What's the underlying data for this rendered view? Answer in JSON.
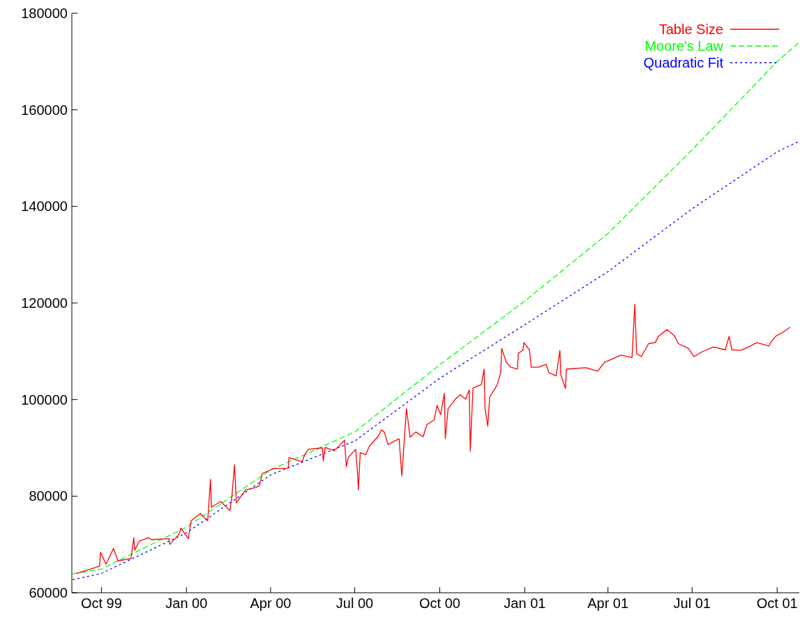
{
  "chart_data": {
    "type": "line",
    "xlim": [
      "1999-08-30",
      "2001-10-25"
    ],
    "ylim": [
      60000,
      180000
    ],
    "xticks": [
      {
        "value": "1999-10-01",
        "label": "Oct 99"
      },
      {
        "value": "2000-01-01",
        "label": "Jan 00"
      },
      {
        "value": "2000-04-01",
        "label": "Apr 00"
      },
      {
        "value": "2000-07-01",
        "label": "Jul 00"
      },
      {
        "value": "2000-10-01",
        "label": "Oct 00"
      },
      {
        "value": "2001-01-01",
        "label": "Jan 01"
      },
      {
        "value": "2001-04-01",
        "label": "Apr 01"
      },
      {
        "value": "2001-07-01",
        "label": "Jul 01"
      },
      {
        "value": "2001-10-01",
        "label": "Oct 01"
      }
    ],
    "yticks": [
      60000,
      80000,
      100000,
      120000,
      140000,
      160000,
      180000
    ],
    "grid": false,
    "legend": "top right",
    "marker": "none",
    "series": [
      {
        "name": "Table Size",
        "color": "#ff0000",
        "line_style": "solid",
        "x": [
          "1999-09-04",
          "1999-09-29",
          "1999-09-30",
          "1999-10-06",
          "1999-10-14",
          "1999-10-19",
          "1999-11-02",
          "1999-11-05",
          "1999-11-06",
          "1999-11-11",
          "1999-11-21",
          "1999-11-24",
          "1999-12-13",
          "1999-12-14",
          "1999-12-24",
          "1999-12-26",
          "2000-01-03",
          "2000-01-06",
          "2000-01-16",
          "2000-01-24",
          "2000-01-27",
          "2000-01-28",
          "2000-02-07",
          "2000-02-17",
          "2000-02-19",
          "2000-02-22",
          "2000-02-24",
          "2000-03-05",
          "2000-03-16",
          "2000-03-20",
          "2000-03-23",
          "2000-04-04",
          "2000-04-20",
          "2000-04-21",
          "2000-05-05",
          "2000-05-08",
          "2000-05-12",
          "2000-05-27",
          "2000-05-28",
          "2000-05-30",
          "2000-06-09",
          "2000-06-20",
          "2000-06-22",
          "2000-06-24",
          "2000-07-02",
          "2000-07-04",
          "2000-07-05",
          "2000-07-07",
          "2000-07-13",
          "2000-07-17",
          "2000-07-26",
          "2000-07-30",
          "2000-08-02",
          "2000-08-06",
          "2000-08-18",
          "2000-08-21",
          "2000-08-26",
          "2000-08-30",
          "2000-09-05",
          "2000-09-13",
          "2000-09-17",
          "2000-09-25",
          "2000-09-28",
          "2000-10-02",
          "2000-10-06",
          "2000-10-07",
          "2000-10-10",
          "2000-10-18",
          "2000-10-23",
          "2000-10-29",
          "2000-11-02",
          "2000-11-03",
          "2000-11-06",
          "2000-11-15",
          "2000-11-18",
          "2000-11-19",
          "2000-11-22",
          "2000-11-24",
          "2000-12-02",
          "2000-12-06",
          "2000-12-07",
          "2000-12-12",
          "2000-12-17",
          "2000-12-24",
          "2000-12-25",
          "2000-12-30",
          "2000-12-31",
          "2001-01-06",
          "2001-01-08",
          "2001-01-16",
          "2001-01-24",
          "2001-01-27",
          "2001-02-04",
          "2001-02-08",
          "2001-02-09",
          "2001-02-14",
          "2001-02-15",
          "2001-03-08",
          "2001-03-21",
          "2001-03-28",
          "2001-04-15",
          "2001-04-27",
          "2001-04-30",
          "2001-05-02",
          "2001-05-07",
          "2001-05-15",
          "2001-05-22",
          "2001-05-26",
          "2001-06-04",
          "2001-06-12",
          "2001-06-16",
          "2001-06-27",
          "2001-07-03",
          "2001-07-12",
          "2001-07-24",
          "2001-08-06",
          "2001-08-10",
          "2001-08-13",
          "2001-08-23",
          "2001-08-31",
          "2001-09-09",
          "2001-09-22",
          "2001-09-25",
          "2001-09-30",
          "2001-10-07",
          "2001-10-15"
        ],
        "values": [
          64000,
          65500,
          68400,
          65900,
          69200,
          66600,
          67100,
          71400,
          68800,
          70700,
          71400,
          71000,
          71200,
          70000,
          72100,
          73400,
          71200,
          74900,
          76400,
          74900,
          83500,
          77700,
          78900,
          77000,
          79600,
          86500,
          78600,
          81300,
          81800,
          82200,
          84700,
          85700,
          85800,
          88000,
          87100,
          88600,
          89700,
          90000,
          87300,
          90100,
          89400,
          91600,
          86100,
          88000,
          89700,
          85000,
          81300,
          89000,
          88600,
          90400,
          92300,
          93700,
          93300,
          90700,
          91900,
          84200,
          98100,
          92200,
          93300,
          92300,
          94800,
          95800,
          98800,
          96900,
          101300,
          91900,
          98100,
          100100,
          101000,
          100100,
          102000,
          89300,
          102400,
          103100,
          106300,
          98100,
          94500,
          100500,
          103000,
          105600,
          110600,
          107700,
          106700,
          106300,
          109600,
          110200,
          111800,
          110300,
          106700,
          106700,
          107300,
          105600,
          104900,
          110200,
          105100,
          102300,
          106300,
          106600,
          105900,
          107700,
          109200,
          108700,
          119700,
          109500,
          108900,
          111600,
          111800,
          113200,
          114500,
          113200,
          111600,
          110600,
          108900,
          109900,
          110900,
          110300,
          113100,
          110300,
          110200,
          110900,
          111800,
          111100,
          112100,
          113200,
          113900,
          115000
        ]
      },
      {
        "name": "Moore's Law",
        "color": "#00ff00",
        "line_style": "dashed",
        "x": [
          "1999-08-31",
          "1999-10-01",
          "2000-01-01",
          "2000-04-01",
          "2000-07-01",
          "2000-10-01",
          "2001-01-01",
          "2001-04-01",
          "2001-07-01",
          "2001-10-01",
          "2001-10-25"
        ],
        "values": [
          63900,
          64900,
          73600,
          85400,
          93300,
          107200,
          120400,
          134400,
          151700,
          170000,
          174000
        ]
      },
      {
        "name": "Quadratic Fit",
        "color": "#0000ff",
        "line_style": "dotted",
        "x": [
          "1999-08-31",
          "1999-10-01",
          "2000-01-01",
          "2000-04-01",
          "2000-07-01",
          "2000-10-01",
          "2001-01-01",
          "2001-04-01",
          "2001-07-01",
          "2001-10-01",
          "2001-10-25"
        ],
        "values": [
          62700,
          64000,
          72400,
          84400,
          91400,
          104400,
          115500,
          126500,
          139500,
          151300,
          153500
        ]
      }
    ]
  }
}
